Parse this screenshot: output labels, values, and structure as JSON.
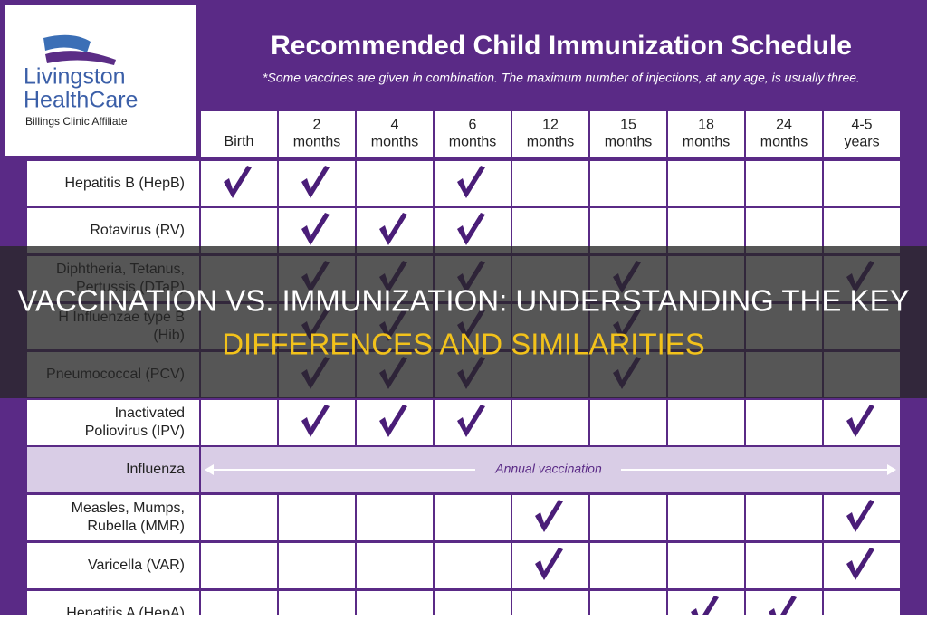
{
  "logo": {
    "name_lines": [
      "Livingston",
      "HealthCare"
    ],
    "affiliate": "Billings Clinic Affiliate"
  },
  "header": {
    "title": "Recommended Child Immunization Schedule",
    "subtitle": "*Some vaccines are given in combination. The maximum number of injections, at any age, is usually three."
  },
  "table": {
    "columns": [
      [
        "Birth"
      ],
      [
        "2",
        "months"
      ],
      [
        "4",
        "months"
      ],
      [
        "6",
        "months"
      ],
      [
        "12",
        "months"
      ],
      [
        "15",
        "months"
      ],
      [
        "18",
        "months"
      ],
      [
        "24",
        "months"
      ],
      [
        "4-5",
        "years"
      ]
    ],
    "rows": [
      {
        "label": [
          "Hepatitis B (HepB)"
        ],
        "checks": [
          true,
          true,
          false,
          true,
          false,
          false,
          false,
          false,
          false
        ]
      },
      {
        "label": [
          "Rotavirus (RV)"
        ],
        "checks": [
          false,
          true,
          true,
          true,
          false,
          false,
          false,
          false,
          false
        ]
      },
      {
        "label": [
          "Diphtheria, Tetanus,",
          "Pertussis (DTaP)"
        ],
        "checks": [
          false,
          true,
          true,
          true,
          false,
          true,
          false,
          false,
          true
        ]
      },
      {
        "label": [
          "H Influenzae type B",
          "(Hib)"
        ],
        "checks": [
          false,
          true,
          true,
          true,
          false,
          true,
          false,
          false,
          false
        ]
      },
      {
        "label": [
          "Pneumococcal (PCV)"
        ],
        "checks": [
          false,
          true,
          true,
          true,
          false,
          true,
          false,
          false,
          false
        ]
      },
      {
        "label": [
          "Inactivated",
          "Poliovirus (IPV)"
        ],
        "checks": [
          false,
          true,
          true,
          true,
          false,
          false,
          false,
          false,
          true
        ]
      },
      {
        "label": [
          "Influenza"
        ],
        "note": "Annual vaccination"
      },
      {
        "label": [
          "Measles, Mumps,",
          "Rubella (MMR)"
        ],
        "checks": [
          false,
          false,
          false,
          false,
          true,
          false,
          false,
          false,
          true
        ]
      },
      {
        "label": [
          "Varicella (VAR)"
        ],
        "checks": [
          false,
          false,
          false,
          false,
          true,
          false,
          false,
          false,
          true
        ]
      },
      {
        "label": [
          "Hepatitis A (HepA)"
        ],
        "checks": [
          false,
          false,
          false,
          false,
          false,
          false,
          true,
          true,
          false
        ]
      }
    ]
  },
  "banner": {
    "line1": "VACCINATION VS. IMMUNIZATION: UNDERSTANDING THE KEY",
    "line2": "DIFFERENCES AND SIMILARITIES"
  }
}
